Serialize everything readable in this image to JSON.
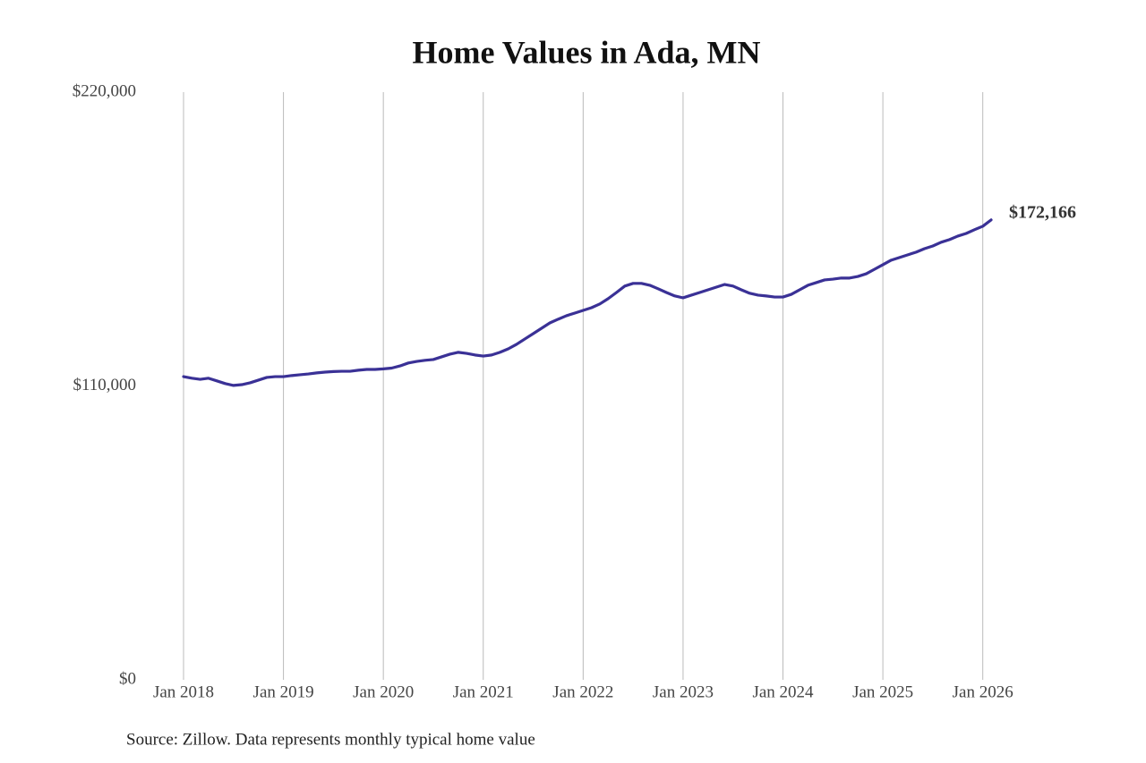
{
  "chart_data": {
    "type": "line",
    "title": "Home Values in Ada, MN",
    "source": "Source: Zillow. Data represents monthly typical home value",
    "x": [
      "2018-01",
      "2018-02",
      "2018-03",
      "2018-04",
      "2018-05",
      "2018-06",
      "2018-07",
      "2018-08",
      "2018-09",
      "2018-10",
      "2018-11",
      "2018-12",
      "2019-01",
      "2019-02",
      "2019-03",
      "2019-04",
      "2019-05",
      "2019-06",
      "2019-07",
      "2019-08",
      "2019-09",
      "2019-10",
      "2019-11",
      "2019-12",
      "2020-01",
      "2020-02",
      "2020-03",
      "2020-04",
      "2020-05",
      "2020-06",
      "2020-07",
      "2020-08",
      "2020-09",
      "2020-10",
      "2020-11",
      "2020-12",
      "2021-01",
      "2021-02",
      "2021-03",
      "2021-04",
      "2021-05",
      "2021-06",
      "2021-07",
      "2021-08",
      "2021-09",
      "2021-10",
      "2021-11",
      "2021-12",
      "2022-01",
      "2022-02",
      "2022-03",
      "2022-04",
      "2022-05",
      "2022-06",
      "2022-07",
      "2022-08",
      "2022-09",
      "2022-10",
      "2022-11",
      "2022-12",
      "2023-01",
      "2023-02",
      "2023-03",
      "2023-04",
      "2023-05",
      "2023-06",
      "2023-07",
      "2023-08",
      "2023-09",
      "2023-10",
      "2023-11",
      "2023-12",
      "2024-01",
      "2024-02",
      "2024-03",
      "2024-04",
      "2024-05",
      "2024-06",
      "2024-07",
      "2024-08",
      "2024-09",
      "2024-10",
      "2024-11",
      "2024-12",
      "2025-01",
      "2025-02",
      "2025-03",
      "2025-04",
      "2025-05",
      "2025-06",
      "2025-07",
      "2025-08",
      "2025-09",
      "2025-10",
      "2025-11",
      "2025-12",
      "2026-01",
      "2026-02"
    ],
    "series": [
      {
        "color": "#3a3196",
        "values": [
          113500,
          112900,
          112500,
          112900,
          111900,
          110900,
          110200,
          110500,
          111200,
          112200,
          113200,
          113500,
          113500,
          113900,
          114200,
          114500,
          114900,
          115200,
          115400,
          115500,
          115500,
          115900,
          116200,
          116200,
          116400,
          116700,
          117500,
          118600,
          119200,
          119600,
          119900,
          120900,
          121900,
          122600,
          122200,
          121600,
          121200,
          121600,
          122600,
          123900,
          125600,
          127600,
          129600,
          131600,
          133600,
          135000,
          136300,
          137300,
          138300,
          139300,
          140700,
          142700,
          145000,
          147400,
          148400,
          148400,
          147700,
          146400,
          145000,
          143700,
          143000,
          144000,
          145000,
          146000,
          147000,
          148000,
          147400,
          146000,
          144700,
          144000,
          143700,
          143300,
          143300,
          144300,
          146000,
          147700,
          148700,
          149700,
          150000,
          150400,
          150400,
          151000,
          152000,
          153700,
          155400,
          157100,
          158100,
          159100,
          160100,
          161400,
          162400,
          163800,
          164800,
          166100,
          167100,
          168500,
          169800,
          172166
        ],
        "value_labels": [
          null,
          null,
          null,
          null,
          null,
          null,
          null,
          null,
          null,
          null,
          null,
          null,
          null,
          null,
          null,
          null,
          null,
          null,
          null,
          null,
          null,
          null,
          null,
          null,
          null,
          null,
          null,
          null,
          null,
          null,
          null,
          null,
          null,
          null,
          null,
          null,
          null,
          null,
          null,
          null,
          null,
          null,
          null,
          null,
          null,
          null,
          null,
          null,
          null,
          null,
          null,
          null,
          null,
          null,
          null,
          null,
          null,
          null,
          null,
          null,
          null,
          null,
          null,
          null,
          null,
          null,
          null,
          null,
          null,
          null,
          null,
          null,
          null,
          null,
          null,
          null,
          null,
          null,
          null,
          null,
          null,
          null,
          null,
          null,
          null,
          null,
          null,
          null,
          null,
          null,
          null,
          null,
          null,
          null,
          null,
          null,
          null,
          "$172,166"
        ]
      }
    ],
    "xlim": [
      "2018-01",
      "2026-02"
    ],
    "xticks": [
      {
        "value": "2018-01",
        "label": "Jan 2018"
      },
      {
        "value": "2019-01",
        "label": "Jan 2019"
      },
      {
        "value": "2020-01",
        "label": "Jan 2020"
      },
      {
        "value": "2021-01",
        "label": "Jan 2021"
      },
      {
        "value": "2022-01",
        "label": "Jan 2022"
      },
      {
        "value": "2023-01",
        "label": "Jan 2023"
      },
      {
        "value": "2024-01",
        "label": "Jan 2024"
      },
      {
        "value": "2025-01",
        "label": "Jan 2025"
      },
      {
        "value": "2026-01",
        "label": "Jan 2026"
      }
    ],
    "ylim": [
      0,
      220000
    ],
    "yticks": [
      {
        "value": 0,
        "label": "$0"
      },
      {
        "value": 110000,
        "label": "$110,000"
      },
      {
        "value": 220000,
        "label": "$220,000"
      }
    ],
    "grid": "x"
  }
}
